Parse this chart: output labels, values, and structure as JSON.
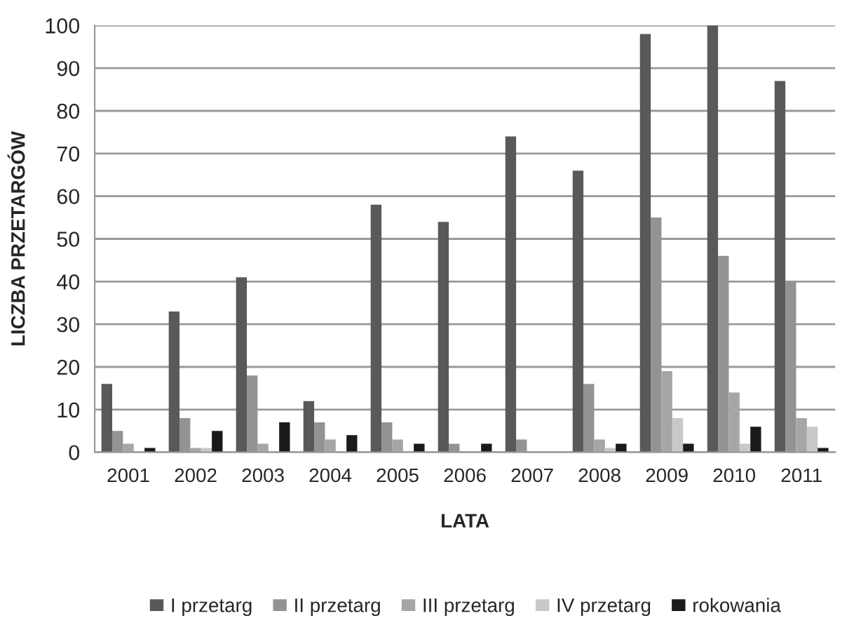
{
  "chart_data": {
    "type": "bar",
    "xlabel": "LATA",
    "ylabel": "LICZBA PRZETARGÓW",
    "categories": [
      "2001",
      "2002",
      "2003",
      "2004",
      "2005",
      "2006",
      "2007",
      "2008",
      "2009",
      "2010",
      "2011"
    ],
    "series": [
      {
        "name": "I przetarg",
        "color": "#595959",
        "values": [
          16,
          33,
          41,
          12,
          58,
          54,
          74,
          66,
          98,
          100,
          87
        ]
      },
      {
        "name": "II przetarg",
        "color": "#939393",
        "values": [
          5,
          8,
          18,
          7,
          7,
          2,
          3,
          16,
          55,
          46,
          40
        ]
      },
      {
        "name": "III przetarg",
        "color": "#a6a6a6",
        "values": [
          2,
          1,
          2,
          3,
          3,
          0,
          0,
          3,
          19,
          14,
          8
        ]
      },
      {
        "name": "IV przetarg",
        "color": "#c8c8c8",
        "values": [
          0,
          1,
          0,
          0,
          0,
          0,
          0,
          1,
          8,
          2,
          6
        ]
      },
      {
        "name": "rokowania",
        "color": "#1a1a1a",
        "values": [
          1,
          5,
          7,
          4,
          2,
          2,
          0,
          2,
          2,
          6,
          1
        ]
      }
    ],
    "ylim": [
      0,
      100
    ],
    "yticks": [
      0,
      10,
      20,
      30,
      40,
      50,
      60,
      70,
      80,
      90,
      100
    ],
    "grid": "y",
    "legend": "bottom"
  }
}
